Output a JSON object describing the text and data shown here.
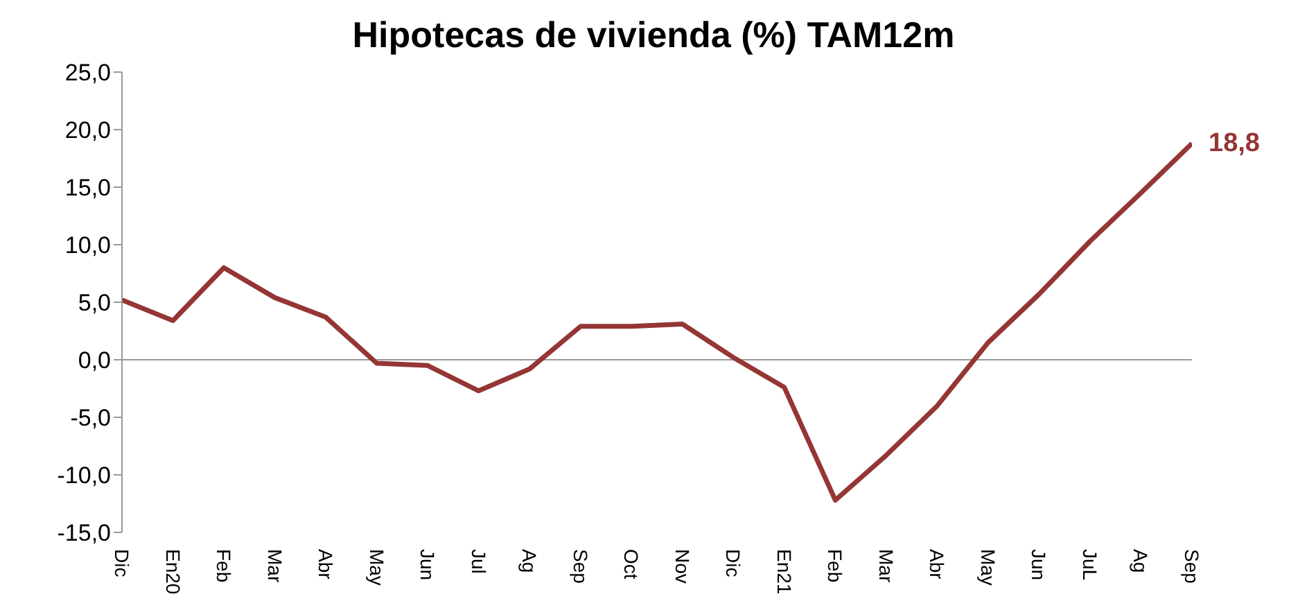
{
  "chart_data": {
    "type": "line",
    "title": "Hipotecas de vivienda (%) TAM12m",
    "categories": [
      "Dic",
      "En20",
      "Feb",
      "Mar",
      "Abr",
      "May",
      "Jun",
      "Jul",
      "Ag",
      "Sep",
      "Oct",
      "Nov",
      "Dic",
      "En21",
      "Feb",
      "Mar",
      "Abr",
      "May",
      "Jun",
      "JuL",
      "Ag",
      "Sep"
    ],
    "series": [
      {
        "color": "#943634",
        "values": [
          5.2,
          3.4,
          8.0,
          5.4,
          3.7,
          -0.3,
          -0.5,
          -2.7,
          -0.8,
          2.9,
          2.9,
          3.1,
          0.2,
          -2.4,
          -12.2,
          -8.3,
          -4.0,
          1.5,
          5.7,
          10.3,
          14.5,
          18.8
        ],
        "value_labels": [
          null,
          null,
          null,
          null,
          null,
          null,
          null,
          null,
          null,
          null,
          null,
          null,
          null,
          null,
          null,
          null,
          null,
          null,
          null,
          null,
          null,
          "18,8"
        ]
      }
    ],
    "ylim": [
      -15,
      25
    ],
    "yticks": [
      {
        "value": -15,
        "label": "-15,0"
      },
      {
        "value": -10,
        "label": "-10,0"
      },
      {
        "value": -5,
        "label": "-5,0"
      },
      {
        "value": 0,
        "label": "0,0"
      },
      {
        "value": 5,
        "label": "5,0"
      },
      {
        "value": 10,
        "label": "10,0"
      },
      {
        "value": 15,
        "label": "15,0"
      },
      {
        "value": 20,
        "label": "20,0"
      },
      {
        "value": 25,
        "label": "25,0"
      }
    ],
    "legend": false,
    "marker": "none",
    "line_style": "solid"
  }
}
